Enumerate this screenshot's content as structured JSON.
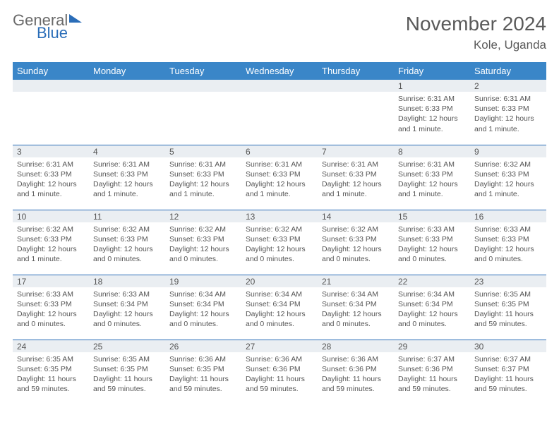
{
  "logo": {
    "word1": "General",
    "word2": "Blue"
  },
  "title": "November 2024",
  "location": "Kole, Uganda",
  "colors": {
    "header_bg": "#3a86c8",
    "header_text": "#ffffff",
    "row_divider": "#2a6db8",
    "daynum_bg": "#eaeef2",
    "text": "#555555",
    "logo_blue": "#2a6db8"
  },
  "weekdays": [
    "Sunday",
    "Monday",
    "Tuesday",
    "Wednesday",
    "Thursday",
    "Friday",
    "Saturday"
  ],
  "weeks": [
    [
      {
        "n": "",
        "sr": "",
        "ss": "",
        "dl": ""
      },
      {
        "n": "",
        "sr": "",
        "ss": "",
        "dl": ""
      },
      {
        "n": "",
        "sr": "",
        "ss": "",
        "dl": ""
      },
      {
        "n": "",
        "sr": "",
        "ss": "",
        "dl": ""
      },
      {
        "n": "",
        "sr": "",
        "ss": "",
        "dl": ""
      },
      {
        "n": "1",
        "sr": "Sunrise: 6:31 AM",
        "ss": "Sunset: 6:33 PM",
        "dl": "Daylight: 12 hours and 1 minute."
      },
      {
        "n": "2",
        "sr": "Sunrise: 6:31 AM",
        "ss": "Sunset: 6:33 PM",
        "dl": "Daylight: 12 hours and 1 minute."
      }
    ],
    [
      {
        "n": "3",
        "sr": "Sunrise: 6:31 AM",
        "ss": "Sunset: 6:33 PM",
        "dl": "Daylight: 12 hours and 1 minute."
      },
      {
        "n": "4",
        "sr": "Sunrise: 6:31 AM",
        "ss": "Sunset: 6:33 PM",
        "dl": "Daylight: 12 hours and 1 minute."
      },
      {
        "n": "5",
        "sr": "Sunrise: 6:31 AM",
        "ss": "Sunset: 6:33 PM",
        "dl": "Daylight: 12 hours and 1 minute."
      },
      {
        "n": "6",
        "sr": "Sunrise: 6:31 AM",
        "ss": "Sunset: 6:33 PM",
        "dl": "Daylight: 12 hours and 1 minute."
      },
      {
        "n": "7",
        "sr": "Sunrise: 6:31 AM",
        "ss": "Sunset: 6:33 PM",
        "dl": "Daylight: 12 hours and 1 minute."
      },
      {
        "n": "8",
        "sr": "Sunrise: 6:31 AM",
        "ss": "Sunset: 6:33 PM",
        "dl": "Daylight: 12 hours and 1 minute."
      },
      {
        "n": "9",
        "sr": "Sunrise: 6:32 AM",
        "ss": "Sunset: 6:33 PM",
        "dl": "Daylight: 12 hours and 1 minute."
      }
    ],
    [
      {
        "n": "10",
        "sr": "Sunrise: 6:32 AM",
        "ss": "Sunset: 6:33 PM",
        "dl": "Daylight: 12 hours and 1 minute."
      },
      {
        "n": "11",
        "sr": "Sunrise: 6:32 AM",
        "ss": "Sunset: 6:33 PM",
        "dl": "Daylight: 12 hours and 0 minutes."
      },
      {
        "n": "12",
        "sr": "Sunrise: 6:32 AM",
        "ss": "Sunset: 6:33 PM",
        "dl": "Daylight: 12 hours and 0 minutes."
      },
      {
        "n": "13",
        "sr": "Sunrise: 6:32 AM",
        "ss": "Sunset: 6:33 PM",
        "dl": "Daylight: 12 hours and 0 minutes."
      },
      {
        "n": "14",
        "sr": "Sunrise: 6:32 AM",
        "ss": "Sunset: 6:33 PM",
        "dl": "Daylight: 12 hours and 0 minutes."
      },
      {
        "n": "15",
        "sr": "Sunrise: 6:33 AM",
        "ss": "Sunset: 6:33 PM",
        "dl": "Daylight: 12 hours and 0 minutes."
      },
      {
        "n": "16",
        "sr": "Sunrise: 6:33 AM",
        "ss": "Sunset: 6:33 PM",
        "dl": "Daylight: 12 hours and 0 minutes."
      }
    ],
    [
      {
        "n": "17",
        "sr": "Sunrise: 6:33 AM",
        "ss": "Sunset: 6:33 PM",
        "dl": "Daylight: 12 hours and 0 minutes."
      },
      {
        "n": "18",
        "sr": "Sunrise: 6:33 AM",
        "ss": "Sunset: 6:34 PM",
        "dl": "Daylight: 12 hours and 0 minutes."
      },
      {
        "n": "19",
        "sr": "Sunrise: 6:34 AM",
        "ss": "Sunset: 6:34 PM",
        "dl": "Daylight: 12 hours and 0 minutes."
      },
      {
        "n": "20",
        "sr": "Sunrise: 6:34 AM",
        "ss": "Sunset: 6:34 PM",
        "dl": "Daylight: 12 hours and 0 minutes."
      },
      {
        "n": "21",
        "sr": "Sunrise: 6:34 AM",
        "ss": "Sunset: 6:34 PM",
        "dl": "Daylight: 12 hours and 0 minutes."
      },
      {
        "n": "22",
        "sr": "Sunrise: 6:34 AM",
        "ss": "Sunset: 6:34 PM",
        "dl": "Daylight: 12 hours and 0 minutes."
      },
      {
        "n": "23",
        "sr": "Sunrise: 6:35 AM",
        "ss": "Sunset: 6:35 PM",
        "dl": "Daylight: 11 hours and 59 minutes."
      }
    ],
    [
      {
        "n": "24",
        "sr": "Sunrise: 6:35 AM",
        "ss": "Sunset: 6:35 PM",
        "dl": "Daylight: 11 hours and 59 minutes."
      },
      {
        "n": "25",
        "sr": "Sunrise: 6:35 AM",
        "ss": "Sunset: 6:35 PM",
        "dl": "Daylight: 11 hours and 59 minutes."
      },
      {
        "n": "26",
        "sr": "Sunrise: 6:36 AM",
        "ss": "Sunset: 6:35 PM",
        "dl": "Daylight: 11 hours and 59 minutes."
      },
      {
        "n": "27",
        "sr": "Sunrise: 6:36 AM",
        "ss": "Sunset: 6:36 PM",
        "dl": "Daylight: 11 hours and 59 minutes."
      },
      {
        "n": "28",
        "sr": "Sunrise: 6:36 AM",
        "ss": "Sunset: 6:36 PM",
        "dl": "Daylight: 11 hours and 59 minutes."
      },
      {
        "n": "29",
        "sr": "Sunrise: 6:37 AM",
        "ss": "Sunset: 6:36 PM",
        "dl": "Daylight: 11 hours and 59 minutes."
      },
      {
        "n": "30",
        "sr": "Sunrise: 6:37 AM",
        "ss": "Sunset: 6:37 PM",
        "dl": "Daylight: 11 hours and 59 minutes."
      }
    ]
  ]
}
